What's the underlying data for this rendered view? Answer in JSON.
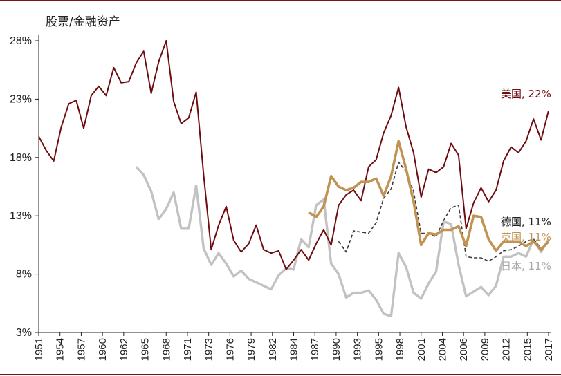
{
  "chart_data": {
    "type": "line",
    "title": "股票/金融资产",
    "xlabel": "",
    "ylabel": "",
    "ylim": [
      3,
      28
    ],
    "xlim": [
      1951,
      2019
    ],
    "yticks": [
      3,
      8,
      13,
      18,
      23,
      28
    ],
    "ytick_labels": [
      "3%",
      "8%",
      "13%",
      "18%",
      "23%",
      "28%"
    ],
    "xtick_labels": [
      "1951",
      "1954",
      "1957",
      "1960",
      "1962",
      "1965",
      "1968",
      "1971",
      "1973",
      "1976",
      "1979",
      "1982",
      "1984",
      "1987",
      "1990",
      "1993",
      "1995",
      "1998",
      "2001",
      "2004",
      "2006",
      "2009",
      "2012",
      "2015",
      "2017"
    ],
    "series": [
      {
        "name": "美国",
        "end_label": "美国, 22%",
        "color": "#6e0c10",
        "style": "solid",
        "x": [
          1951,
          1952,
          1953,
          1954,
          1955,
          1956,
          1957,
          1958,
          1959,
          1960,
          1961,
          1962,
          1963,
          1964,
          1965,
          1966,
          1967,
          1968,
          1969,
          1970,
          1971,
          1972,
          1973,
          1974,
          1975,
          1976,
          1977,
          1978,
          1979,
          1980,
          1981,
          1982,
          1983,
          1984,
          1985,
          1986,
          1987,
          1988,
          1989,
          1990,
          1991,
          1992,
          1993,
          1994,
          1995,
          1996,
          1997,
          1998,
          1999,
          2000,
          2001,
          2002,
          2003,
          2004,
          2005,
          2006,
          2007,
          2008,
          2009,
          2010,
          2011,
          2012,
          2013,
          2014,
          2015,
          2016,
          2017,
          2018,
          2019
        ],
        "values": [
          19.8,
          18.6,
          17.7,
          20.6,
          22.6,
          22.9,
          20.5,
          23.3,
          24.1,
          23.3,
          25.7,
          24.4,
          24.5,
          26.1,
          27.1,
          23.5,
          26.2,
          28.0,
          22.8,
          20.9,
          21.4,
          23.6,
          16.5,
          10.1,
          12.2,
          13.8,
          10.9,
          9.9,
          10.6,
          12.2,
          10.1,
          9.8,
          10.0,
          8.4,
          9.2,
          10.1,
          9.2,
          10.6,
          11.8,
          10.5,
          13.9,
          14.8,
          15.2,
          14.3,
          17.2,
          17.8,
          20.1,
          21.6,
          24.0,
          20.6,
          18.4,
          14.6,
          17.0,
          16.7,
          17.2,
          19.2,
          18.2,
          11.9,
          14.1,
          15.4,
          14.2,
          15.2,
          17.7,
          18.9,
          18.4,
          19.4,
          21.3,
          19.5,
          22.0
        ]
      },
      {
        "name": "英国",
        "end_label": "英国, 11%",
        "color": "#c09352",
        "style": "solid",
        "x": [
          1987,
          1988,
          1989,
          1990,
          1991,
          1992,
          1993,
          1994,
          1995,
          1996,
          1997,
          1998,
          1999,
          2000,
          2001,
          2002,
          2003,
          2004,
          2005,
          2006,
          2007,
          2008,
          2009,
          2010,
          2011,
          2012,
          2013,
          2014,
          2015,
          2016,
          2017,
          2018,
          2019
        ],
        "values": [
          13.3,
          12.9,
          13.8,
          16.4,
          15.5,
          15.2,
          15.4,
          15.9,
          15.9,
          16.2,
          14.7,
          16.4,
          19.4,
          17.0,
          14.2,
          10.5,
          11.5,
          11.4,
          11.8,
          11.8,
          12.1,
          10.4,
          13.0,
          12.9,
          11.0,
          10.0,
          10.8,
          10.8,
          10.8,
          10.4,
          10.8,
          10.1,
          10.8
        ]
      },
      {
        "name": "德国",
        "end_label": "德国, 11%",
        "color": "#3a3a3a",
        "style": "dashed",
        "x": [
          1991,
          1992,
          1993,
          1994,
          1995,
          1996,
          1997,
          1998,
          1999,
          2000,
          2001,
          2002,
          2003,
          2004,
          2005,
          2006,
          2007,
          2008,
          2009,
          2010,
          2011,
          2012,
          2013,
          2014,
          2015,
          2016,
          2017,
          2018,
          2019
        ],
        "values": [
          10.8,
          9.9,
          11.7,
          11.6,
          11.5,
          12.4,
          14.5,
          15.3,
          17.6,
          16.8,
          15.1,
          11.5,
          11.5,
          11.2,
          12.6,
          13.7,
          13.9,
          9.5,
          9.4,
          9.4,
          9.1,
          9.5,
          10.0,
          10.1,
          10.4,
          10.8,
          11.0,
          10.2,
          10.7
        ]
      },
      {
        "name": "日本",
        "end_label": "日本, 11%",
        "color": "#c2c2c2",
        "style": "solid",
        "x": [
          1964,
          1965,
          1966,
          1967,
          1968,
          1969,
          1970,
          1971,
          1972,
          1973,
          1974,
          1975,
          1976,
          1977,
          1978,
          1979,
          1980,
          1981,
          1982,
          1983,
          1984,
          1985,
          1986,
          1987,
          1988,
          1989,
          1990,
          1991,
          1992,
          1993,
          1994,
          1995,
          1996,
          1997,
          1998,
          1999,
          2000,
          2001,
          2002,
          2003,
          2004,
          2005,
          2006,
          2007,
          2008,
          2009,
          2010,
          2011,
          2012,
          2013,
          2014,
          2015,
          2016,
          2017,
          2018,
          2019
        ],
        "values": [
          17.2,
          16.5,
          15.1,
          12.7,
          13.6,
          15.0,
          11.9,
          11.9,
          15.6,
          10.2,
          8.8,
          9.8,
          8.9,
          7.8,
          8.3,
          7.6,
          7.3,
          7.0,
          6.7,
          7.9,
          8.5,
          8.4,
          11.0,
          10.3,
          13.9,
          14.4,
          8.9,
          8.0,
          6.0,
          6.4,
          6.4,
          6.6,
          5.8,
          4.6,
          4.4,
          9.8,
          8.6,
          6.4,
          5.9,
          7.2,
          8.2,
          12.5,
          12.3,
          8.8,
          6.1,
          6.5,
          6.9,
          6.2,
          7.0,
          9.5,
          9.5,
          9.8,
          9.5,
          11.0,
          9.9,
          11.0
        ]
      }
    ]
  }
}
